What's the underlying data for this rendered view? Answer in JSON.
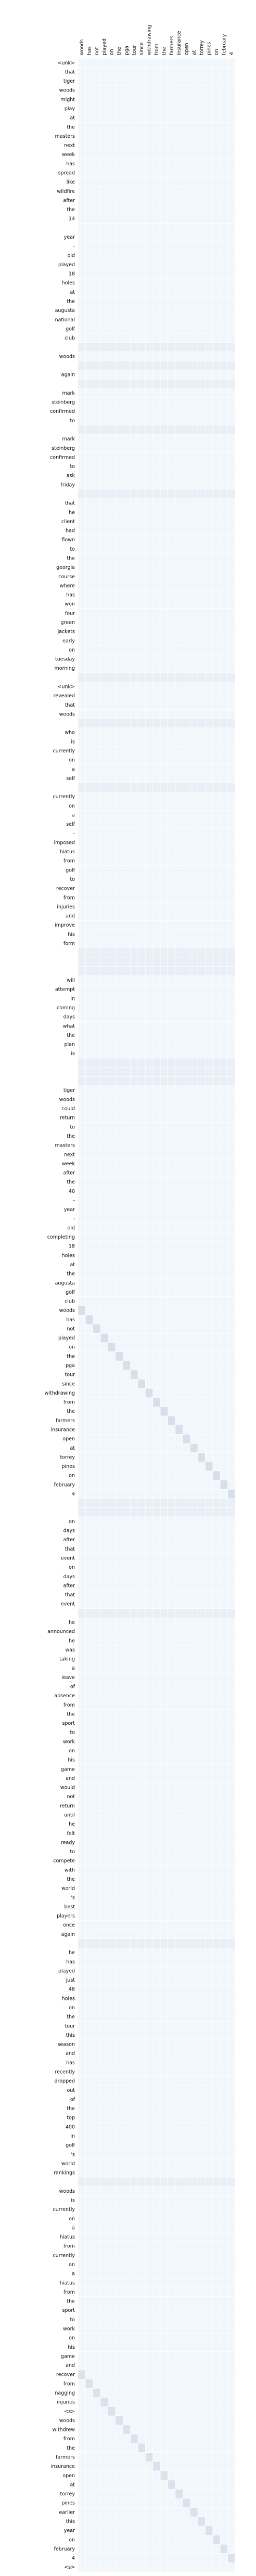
{
  "chart_data": {
    "type": "heatmap",
    "title": "",
    "xlabel": "",
    "ylabel": "",
    "x_labels": [
      "woods",
      "has",
      "not",
      "played",
      "on",
      "the",
      "pga",
      "tour",
      "since",
      "withdrawing",
      "from",
      "the",
      "farmers",
      "insurance",
      "open",
      "at",
      "torrey",
      "pines",
      "on",
      "february",
      "4"
    ],
    "y_labels": [
      "<unk>",
      "that",
      "tiger",
      "woods",
      "might",
      "play",
      "at",
      "the",
      "masters",
      "next",
      "week",
      "has",
      "spread",
      "like",
      "wildfire",
      "after",
      "the",
      "14",
      "-",
      "year",
      "-",
      "old",
      "played",
      "18",
      "holes",
      "at",
      "the",
      "augusta",
      "national",
      "golf",
      "club",
      "",
      "woods",
      "",
      "again",
      "",
      "mark",
      "steinberg",
      "confirmed",
      "to",
      "",
      "mark",
      "steinberg",
      "confirmed",
      "to",
      "ask",
      "friday",
      "",
      "that",
      "he",
      "client",
      "had",
      "flown",
      "to",
      "the",
      "georgia",
      "course",
      "where",
      "has",
      "won",
      "four",
      "green",
      "jackets",
      "early",
      "on",
      "tuesday",
      "morning",
      "",
      "<unk>",
      "revealed",
      "that",
      "woods",
      "",
      "who",
      "is",
      "currently",
      "on",
      "a",
      "self",
      "",
      "currently",
      "on",
      "a",
      "self",
      "-",
      "imposed",
      "hiatus",
      "from",
      "golf",
      "to",
      "recover",
      "from",
      "injuries",
      "and",
      "improve",
      "his",
      "form",
      "",
      "",
      "",
      "will",
      "attempt",
      "in",
      "coming",
      "days",
      "what",
      "the",
      "plan",
      "is",
      "",
      "",
      "",
      "tiger",
      "woods",
      "could",
      "return",
      "to",
      "the",
      "masters",
      "next",
      "week",
      "after",
      "the",
      "40",
      "-",
      "year",
      "-",
      "old",
      "completing",
      "18",
      "holes",
      "at",
      "the",
      "augusta",
      "golf",
      "club",
      "woods",
      "has",
      "not",
      "played",
      "on",
      "the",
      "pga",
      "tour",
      "since",
      "withdrawing",
      "from",
      "the",
      "farmers",
      "insurance",
      "open",
      "at",
      "torrey",
      "pines",
      "on",
      "february",
      "4",
      "",
      "",
      "on",
      "days",
      "after",
      "that",
      "event",
      "on",
      "days",
      "after",
      "that",
      "event",
      "",
      "he",
      "announced",
      "he",
      "was",
      "taking",
      "a",
      "leave",
      "of",
      "absence",
      "from",
      "the",
      "sport",
      "to",
      "work",
      "on",
      "his",
      "game",
      "and",
      "would",
      "not",
      "return",
      "until",
      "he",
      "felt",
      "ready",
      "to",
      "compete",
      "with",
      "the",
      "world",
      "'s",
      "best",
      "players",
      "once",
      "again",
      "",
      "he",
      "has",
      "played",
      "just",
      "48",
      "holes",
      "on",
      "the",
      "tour",
      "this",
      "season",
      "and",
      "has",
      "recently",
      "dropped",
      "out",
      "of",
      "the",
      "top",
      "400",
      "in",
      "golf",
      "'s",
      "world",
      "rankings",
      "",
      "woods",
      "is",
      "currently",
      "on",
      "a",
      "hiatus",
      "from",
      "currently",
      "on",
      "a",
      "hiatus",
      "from",
      "the",
      "sport",
      "to",
      "work",
      "on",
      "his",
      "game",
      "and",
      "recover",
      "from",
      "nagging",
      "injuries",
      "<s>",
      "woods",
      "withdrew",
      "from",
      "the",
      "farmers",
      "insurance",
      "open",
      "at",
      "torrey",
      "pines",
      "earlier",
      "this",
      "year",
      "on",
      "february",
      "4",
      "<s>"
    ],
    "value_range": [
      0,
      1
    ],
    "colors": {
      "low": "#f7fbff",
      "high": "#08306b"
    }
  }
}
